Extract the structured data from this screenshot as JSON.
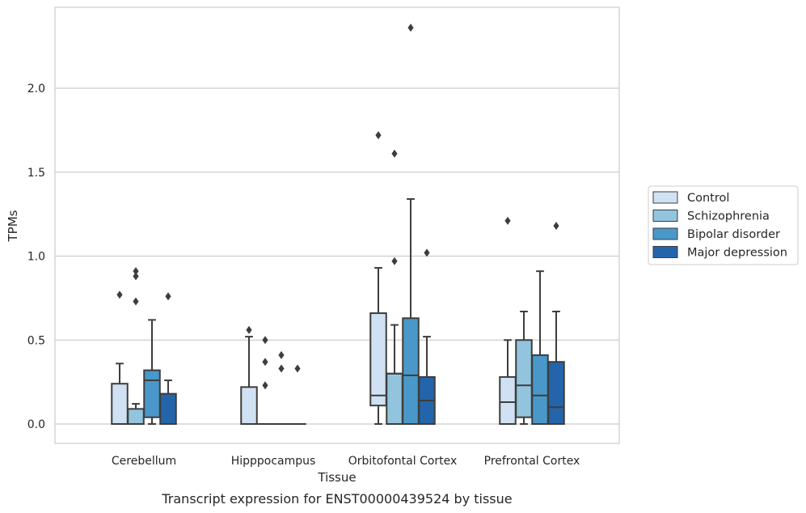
{
  "caption": "Transcript expression for ENST00000439524 by tissue",
  "chart_data": {
    "type": "box",
    "title": "",
    "xlabel": "Tissue",
    "ylabel": "TPMs",
    "ylim": [
      -0.11,
      2.48
    ],
    "yticks": [
      0.0,
      0.5,
      1.0,
      1.5,
      2.0
    ],
    "ytick_labels": [
      "0.0",
      "0.5",
      "1.0",
      "1.5",
      "2.0"
    ],
    "grid": "horizontal",
    "legend_position": "right",
    "categories": [
      "Cerebellum",
      "Hipppocampus",
      "Orbitofontal Cortex",
      "Prefrontal Cortex"
    ],
    "series": [
      {
        "name": "Control",
        "color": "#cfe1f2",
        "boxes": [
          {
            "q1": 0.0,
            "median": 0.0,
            "q3": 0.24,
            "whislo": 0.0,
            "whishi": 0.36,
            "fliers": [
              0.77
            ]
          },
          {
            "q1": 0.0,
            "median": 0.0,
            "q3": 0.22,
            "whislo": 0.0,
            "whishi": 0.52,
            "fliers": [
              0.56
            ]
          },
          {
            "q1": 0.11,
            "median": 0.17,
            "q3": 0.66,
            "whislo": 0.0,
            "whishi": 0.93,
            "fliers": [
              1.72
            ]
          },
          {
            "q1": 0.0,
            "median": 0.13,
            "q3": 0.28,
            "whislo": 0.0,
            "whishi": 0.5,
            "fliers": [
              1.21
            ]
          }
        ]
      },
      {
        "name": "Schizophrenia",
        "color": "#93c4de",
        "boxes": [
          {
            "q1": 0.0,
            "median": 0.0,
            "q3": 0.09,
            "whislo": 0.0,
            "whishi": 0.12,
            "fliers": [
              0.73,
              0.88,
              0.91
            ]
          },
          {
            "q1": 0.0,
            "median": 0.0,
            "q3": 0.0,
            "whislo": 0.0,
            "whishi": 0.0,
            "fliers": [
              0.23,
              0.37,
              0.5
            ]
          },
          {
            "q1": 0.0,
            "median": 0.3,
            "q3": 0.3,
            "whislo": 0.0,
            "whishi": 0.59,
            "fliers": [
              0.97,
              1.61
            ]
          },
          {
            "q1": 0.04,
            "median": 0.23,
            "q3": 0.5,
            "whislo": 0.0,
            "whishi": 0.67,
            "fliers": []
          }
        ]
      },
      {
        "name": "Bipolar disorder",
        "color": "#4a98c9",
        "boxes": [
          {
            "q1": 0.04,
            "median": 0.26,
            "q3": 0.32,
            "whislo": 0.0,
            "whishi": 0.62,
            "fliers": []
          },
          {
            "q1": 0.0,
            "median": 0.0,
            "q3": 0.0,
            "whislo": 0.0,
            "whishi": 0.0,
            "fliers": [
              0.33,
              0.41
            ]
          },
          {
            "q1": 0.0,
            "median": 0.29,
            "q3": 0.63,
            "whislo": 0.0,
            "whishi": 1.34,
            "fliers": [
              2.36
            ]
          },
          {
            "q1": 0.0,
            "median": 0.17,
            "q3": 0.41,
            "whislo": 0.0,
            "whishi": 0.91,
            "fliers": []
          }
        ]
      },
      {
        "name": "Major depression",
        "color": "#2464ab",
        "boxes": [
          {
            "q1": 0.0,
            "median": 0.0,
            "q3": 0.18,
            "whislo": 0.0,
            "whishi": 0.26,
            "fliers": [
              0.76
            ]
          },
          {
            "q1": 0.0,
            "median": 0.0,
            "q3": 0.0,
            "whislo": 0.0,
            "whishi": 0.0,
            "fliers": [
              0.33
            ]
          },
          {
            "q1": 0.0,
            "median": 0.14,
            "q3": 0.28,
            "whislo": 0.0,
            "whishi": 0.52,
            "fliers": [
              1.02
            ]
          },
          {
            "q1": 0.0,
            "median": 0.1,
            "q3": 0.37,
            "whislo": 0.0,
            "whishi": 0.67,
            "fliers": [
              1.18
            ]
          }
        ]
      }
    ]
  }
}
